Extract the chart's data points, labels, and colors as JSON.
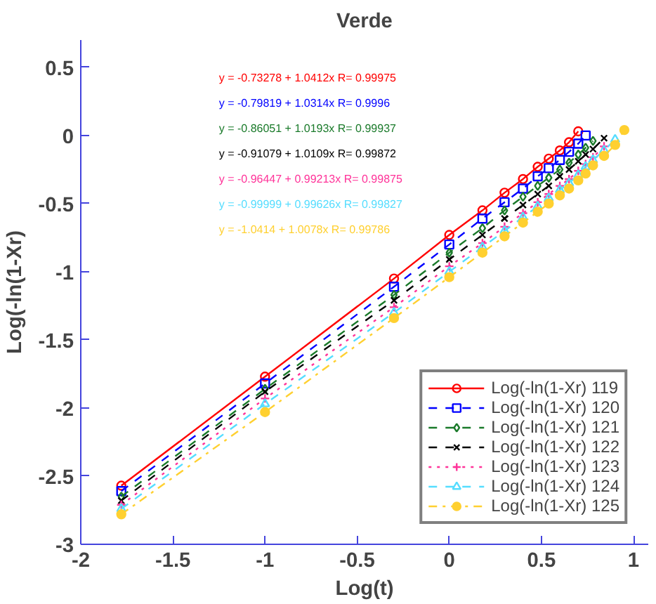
{
  "chart_data": {
    "type": "line",
    "title": "Verde",
    "xlabel": "Log(t)",
    "ylabel": "Log(-ln(1-Xr)",
    "xlim": [
      -2,
      1.08
    ],
    "ylim": [
      -3,
      0.7
    ],
    "xticks": [
      -2,
      -1.5,
      -1,
      -0.5,
      0,
      0.5,
      1
    ],
    "yticks": [
      -3,
      -2.5,
      -2,
      -1.5,
      -1,
      -0.5,
      0,
      0.5
    ],
    "grid": false,
    "legend": "bottom right",
    "annotations": [
      "y = -0.73278 + 1.0412x   R= 0.99975",
      "y = -0.79819 + 1.0314x   R= 0.9996",
      "y = -0.86051 + 1.0193x   R= 0.99937",
      "y = -0.91079 + 1.0109x   R= 0.99872",
      "y = -0.96447 + 0.99213x   R= 0.99875",
      "y = -0.99999 + 0.99626x   R= 0.99827",
      "y = -1.0414 + 1.0078x   R= 0.99786"
    ],
    "series": [
      {
        "name": "Log(-ln(1-Xr) 119",
        "color": "#ff0000",
        "marker": "circle",
        "line_style": "solid",
        "x": [
          -1.78,
          -1,
          -0.3,
          0,
          0.18,
          0.3,
          0.4,
          0.48,
          0.54,
          0.6,
          0.65,
          0.7
        ],
        "values": [
          -2.57,
          -1.77,
          -1.05,
          -0.73,
          -0.55,
          -0.42,
          -0.32,
          -0.23,
          -0.17,
          -0.11,
          -0.05,
          0.03
        ]
      },
      {
        "name": "Log(-ln(1-Xr) 120",
        "color": "#0000ff",
        "marker": "square",
        "line_style": "dashed",
        "x": [
          -1.78,
          -1,
          -0.3,
          0,
          0.18,
          0.3,
          0.4,
          0.48,
          0.54,
          0.6,
          0.65,
          0.7,
          0.74
        ],
        "values": [
          -2.61,
          -1.82,
          -1.11,
          -0.8,
          -0.61,
          -0.49,
          -0.39,
          -0.3,
          -0.24,
          -0.18,
          -0.12,
          -0.06,
          0.0
        ]
      },
      {
        "name": "Log(-ln(1-Xr) 121",
        "color": "#1a7a2a",
        "marker": "diamond",
        "line_style": "dashed",
        "x": [
          -1.78,
          -1,
          -0.3,
          0,
          0.18,
          0.3,
          0.4,
          0.48,
          0.54,
          0.6,
          0.65,
          0.7,
          0.74,
          0.78
        ],
        "values": [
          -2.65,
          -1.86,
          -1.17,
          -0.86,
          -0.68,
          -0.55,
          -0.45,
          -0.37,
          -0.31,
          -0.25,
          -0.2,
          -0.14,
          -0.09,
          -0.04
        ]
      },
      {
        "name": "Log(-ln(1-Xr) 122",
        "color": "#000000",
        "marker": "x",
        "line_style": "dashed",
        "x": [
          -1.78,
          -1,
          -0.3,
          0,
          0.18,
          0.3,
          0.4,
          0.48,
          0.54,
          0.6,
          0.65,
          0.7,
          0.74,
          0.78,
          0.84
        ],
        "values": [
          -2.68,
          -1.88,
          -1.21,
          -0.91,
          -0.73,
          -0.61,
          -0.51,
          -0.43,
          -0.37,
          -0.3,
          -0.25,
          -0.19,
          -0.14,
          -0.1,
          -0.02
        ]
      },
      {
        "name": "Log(-ln(1-Xr) 123",
        "color": "#ff3399",
        "marker": "cross",
        "line_style": "dotted",
        "x": [
          -1.78,
          -1,
          -0.3,
          0,
          0.18,
          0.3,
          0.4,
          0.48,
          0.54,
          0.6,
          0.65,
          0.7,
          0.74,
          0.78,
          0.84
        ],
        "values": [
          -2.71,
          -1.93,
          -1.26,
          -0.96,
          -0.79,
          -0.67,
          -0.57,
          -0.49,
          -0.43,
          -0.37,
          -0.32,
          -0.26,
          -0.21,
          -0.16,
          -0.08
        ]
      },
      {
        "name": "Log(-ln(1-Xr) 124",
        "color": "#55ddff",
        "marker": "triangle",
        "line_style": "dashed",
        "x": [
          -1.78,
          -1,
          -0.3,
          0,
          0.18,
          0.3,
          0.4,
          0.48,
          0.54,
          0.6,
          0.65,
          0.7,
          0.74,
          0.78,
          0.84,
          0.9
        ],
        "values": [
          -2.74,
          -1.97,
          -1.3,
          -1.0,
          -0.82,
          -0.7,
          -0.6,
          -0.52,
          -0.46,
          -0.4,
          -0.35,
          -0.29,
          -0.23,
          -0.18,
          -0.11,
          -0.03
        ]
      },
      {
        "name": "Log(-ln(1-Xr) 125",
        "color": "#ffd030",
        "marker": "filled_circle",
        "line_style": "dashdot",
        "x": [
          -1.78,
          -1,
          -0.3,
          0,
          0.18,
          0.3,
          0.4,
          0.48,
          0.54,
          0.6,
          0.65,
          0.7,
          0.74,
          0.78,
          0.84,
          0.9,
          0.95
        ],
        "values": [
          -2.78,
          -2.03,
          -1.34,
          -1.04,
          -0.86,
          -0.74,
          -0.64,
          -0.56,
          -0.5,
          -0.44,
          -0.39,
          -0.33,
          -0.28,
          -0.22,
          -0.15,
          -0.07,
          0.04
        ]
      }
    ]
  }
}
